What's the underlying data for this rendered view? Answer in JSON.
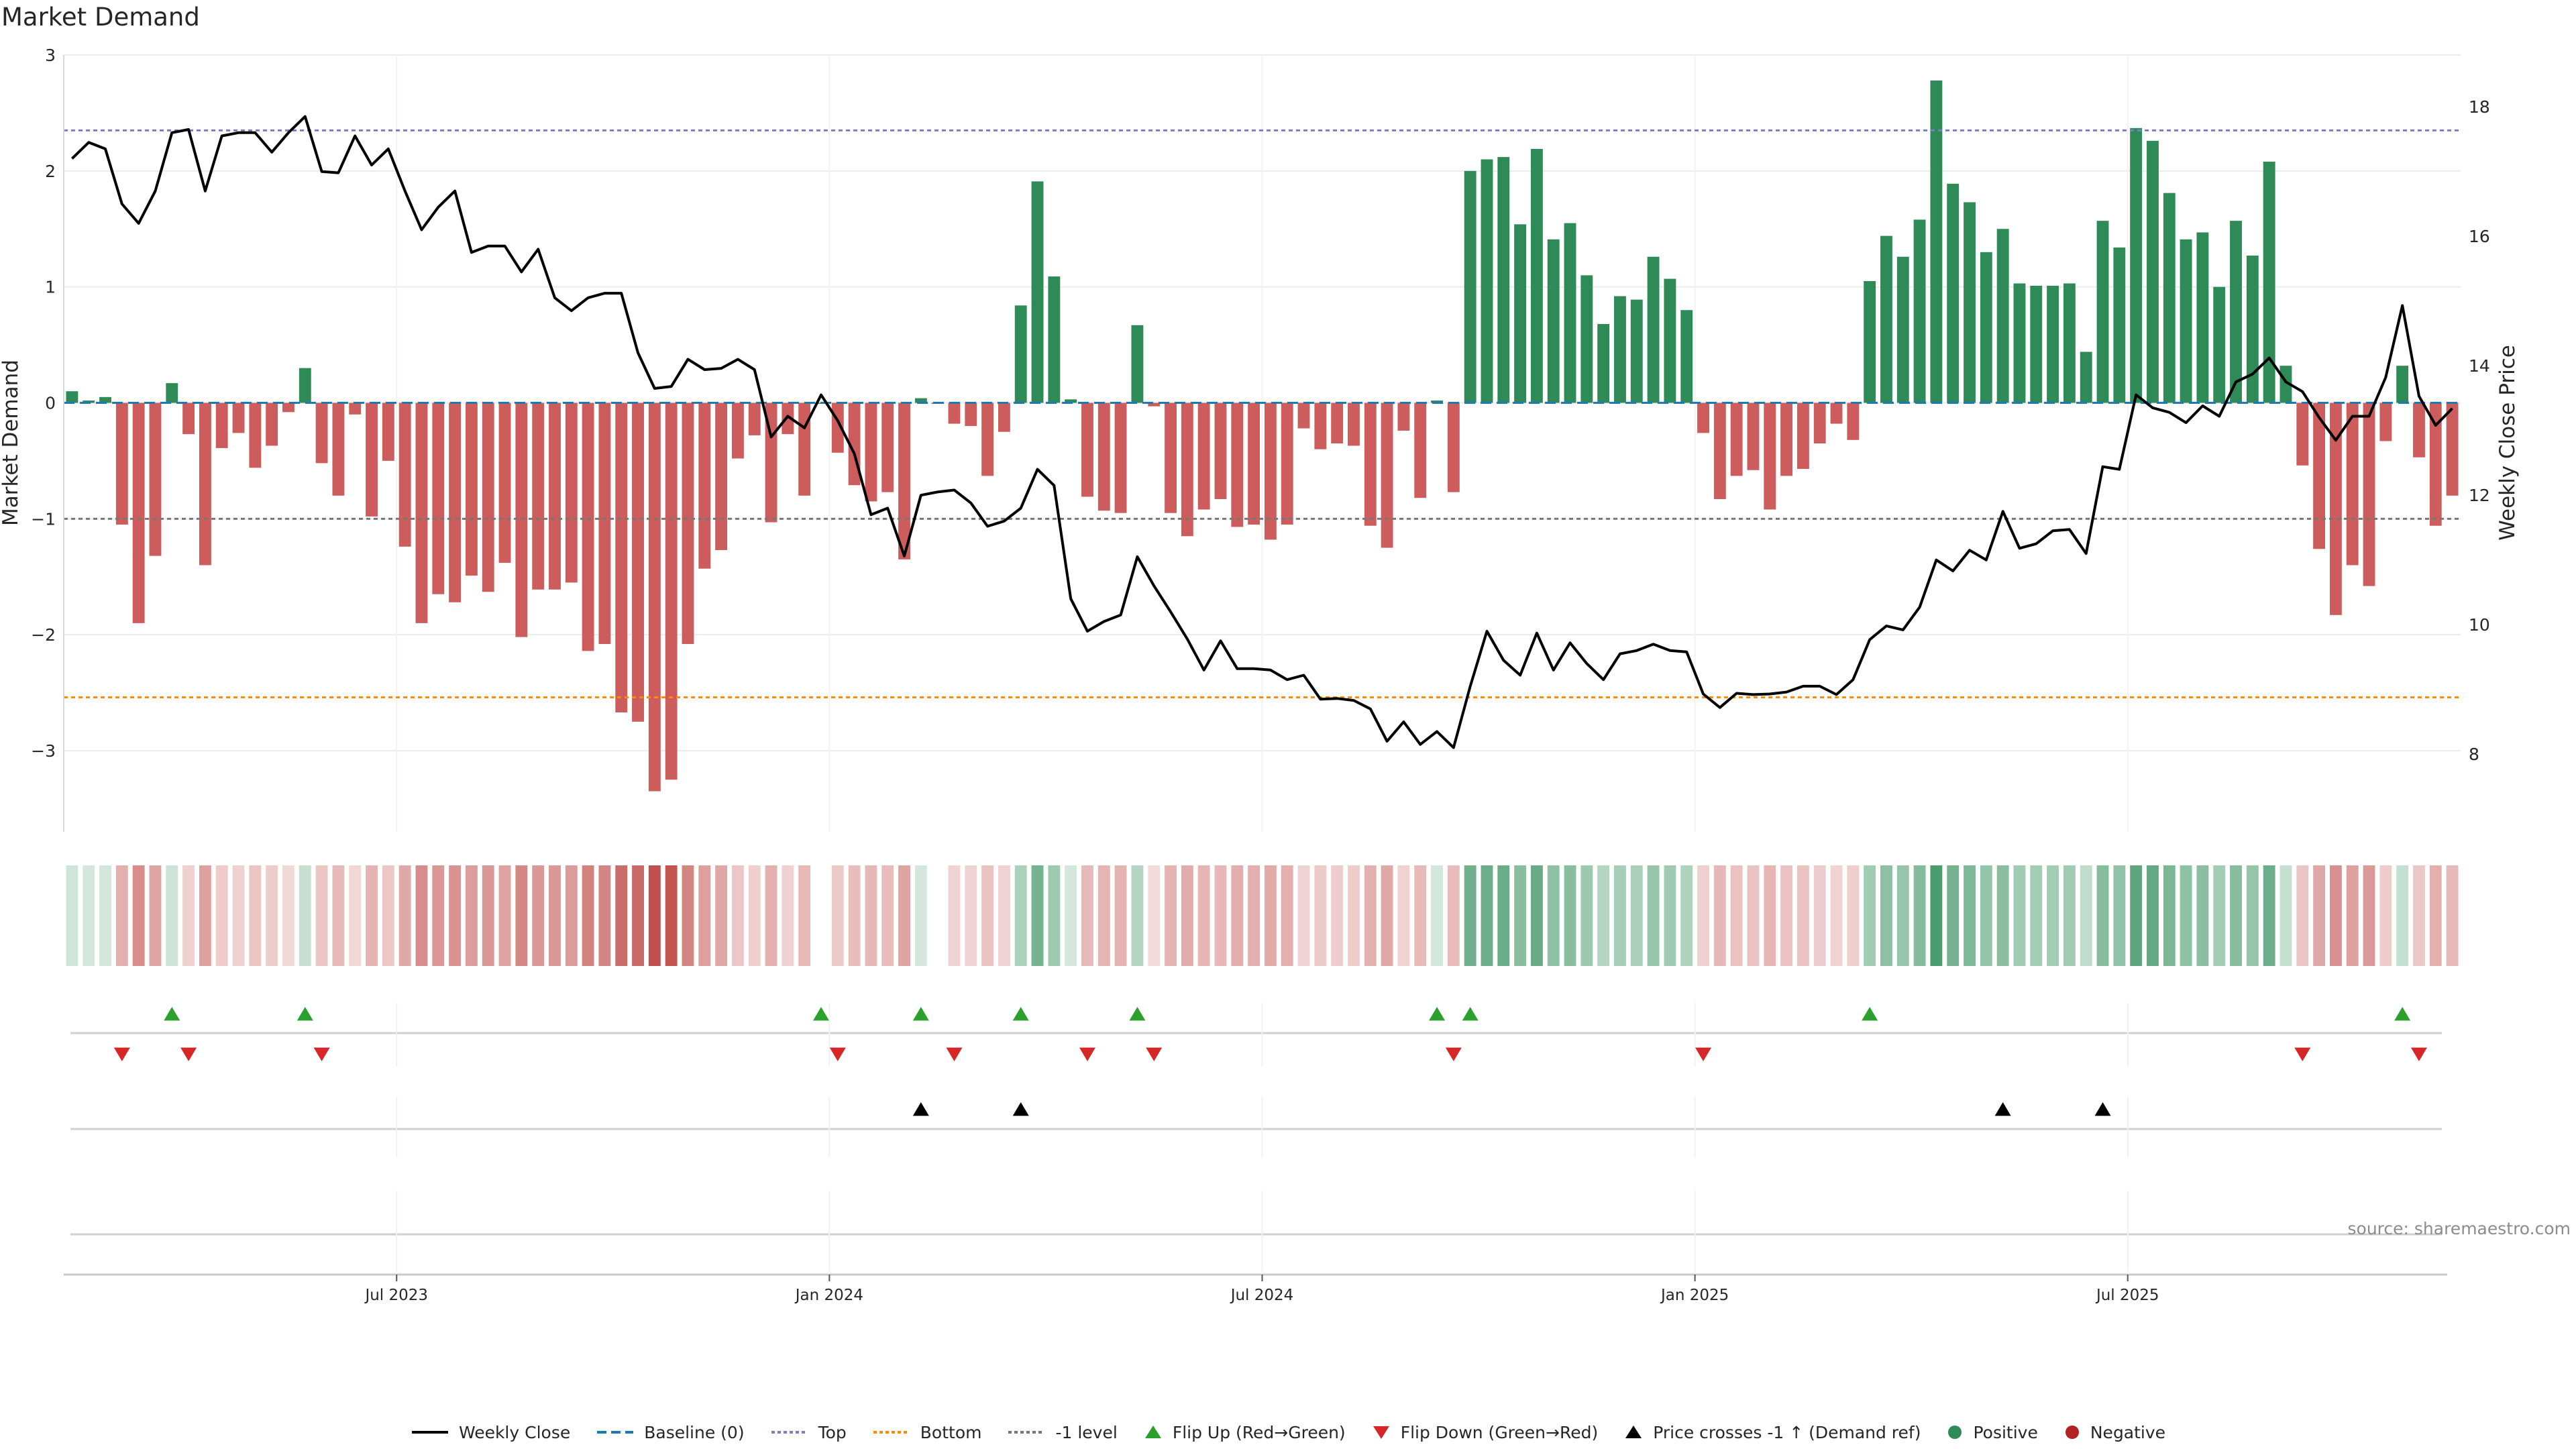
{
  "title": "Market Demand",
  "source": "source: sharemaestro.com",
  "colors": {
    "positive": "#2e8b57",
    "negative": "#cd5c5c",
    "close": "#000000",
    "top": "#7b7fbf",
    "bottom": "#ff8c00",
    "minus1": "#777777",
    "flip_up": "#2ca02c",
    "flip_down": "#d62728",
    "price_cross": "#000000"
  },
  "legend": [
    {
      "label": "Weekly Close",
      "icon": "solid-line",
      "color": "#000000"
    },
    {
      "label": "Baseline (0)",
      "icon": "dashed-line",
      "color": "#1f77b4"
    },
    {
      "label": "Top",
      "icon": "dotted-line",
      "color": "#7b7fbf"
    },
    {
      "label": "Bottom",
      "icon": "dotted-line",
      "color": "#ff8c00"
    },
    {
      "label": "-1 level",
      "icon": "dotted-line",
      "color": "#777777"
    },
    {
      "label": "Flip Up (Red→Green)",
      "icon": "triangle-up",
      "color": "#2ca02c"
    },
    {
      "label": "Flip Down (Green→Red)",
      "icon": "triangle-down",
      "color": "#d62728"
    },
    {
      "label": "Price crosses -1 ↑ (Demand ref)",
      "icon": "triangle-up",
      "color": "#000000"
    },
    {
      "label": "Positive",
      "icon": "circle",
      "color": "#2e8b57"
    },
    {
      "label": "Negative",
      "icon": "circle",
      "color": "#b22222"
    }
  ],
  "chart_data": {
    "type": "bar",
    "ylabel": "Market Demand",
    "y2label": "Weekly Close Price",
    "ylim": [
      -3.7,
      3.0
    ],
    "y2lim": [
      6.8,
      18.8
    ],
    "yticks": [
      "3",
      "2",
      "1",
      "0",
      "−1",
      "−2",
      "−3"
    ],
    "yticks_values": [
      3,
      2,
      1,
      0,
      -1,
      -2,
      -3
    ],
    "y2ticks": [
      "18",
      "16",
      "14",
      "12",
      "10",
      "8"
    ],
    "y2ticks_values": [
      18,
      16,
      14,
      12,
      10,
      8
    ],
    "xticks": [
      "Jul 2023",
      "Jan 2024",
      "Jul 2024",
      "Jan 2025",
      "Jul 2025"
    ],
    "xticks_week_index": [
      20,
      46,
      72,
      98,
      124
    ],
    "top_level": 2.35,
    "bottom_level": -2.54,
    "minus1_level": -1.0,
    "grid": true,
    "legend_position": "bottom",
    "demand": [
      0.1,
      0.02,
      0.05,
      -1.05,
      -1.9,
      -1.32,
      0.17,
      -0.27,
      -1.4,
      -0.39,
      -0.26,
      -0.56,
      -0.37,
      -0.08,
      0.3,
      -0.52,
      -0.8,
      -0.1,
      -0.98,
      -0.5,
      -1.24,
      -1.9,
      -1.65,
      -1.72,
      -1.49,
      -1.63,
      -1.38,
      -2.02,
      -1.61,
      -1.61,
      -1.55,
      -2.14,
      -2.08,
      -2.67,
      -2.75,
      -3.35,
      -3.25,
      -2.08,
      -1.43,
      -1.27,
      -0.48,
      -0.28,
      -1.03,
      -0.27,
      -0.8,
      0.0,
      -0.43,
      -0.71,
      -0.85,
      -0.77,
      -1.35,
      0.04,
      0.0,
      -0.18,
      -0.2,
      -0.63,
      -0.25,
      0.84,
      1.91,
      1.09,
      0.03,
      -0.81,
      -0.93,
      -0.95,
      0.67,
      -0.03,
      -0.95,
      -1.15,
      -0.92,
      -0.83,
      -1.07,
      -1.05,
      -1.18,
      -1.05,
      -0.22,
      -0.4,
      -0.35,
      -0.37,
      -1.06,
      -1.25,
      -0.24,
      -0.82,
      0.02,
      -0.77,
      2.0,
      2.1,
      2.12,
      1.54,
      2.19,
      1.41,
      1.55,
      1.1,
      0.68,
      0.92,
      0.89,
      1.26,
      1.07,
      0.8,
      -0.26,
      -0.83,
      -0.63,
      -0.58,
      -0.92,
      -0.63,
      -0.57,
      -0.35,
      -0.18,
      -0.32,
      1.05,
      1.44,
      1.26,
      1.58,
      2.78,
      1.89,
      1.73,
      1.3,
      1.5,
      1.03,
      1.01,
      1.01,
      1.03,
      0.44,
      1.57,
      1.34,
      2.37,
      2.26,
      1.81,
      1.41,
      1.47,
      1.0,
      1.57,
      1.27,
      2.08,
      0.32,
      -0.54,
      -1.26,
      -1.83,
      -1.4,
      -1.58,
      -0.33,
      0.32,
      -0.47,
      -1.06,
      -0.8
    ],
    "close": [
      17.2,
      17.45,
      17.35,
      16.5,
      16.2,
      16.7,
      17.6,
      17.65,
      16.7,
      17.55,
      17.6,
      17.6,
      17.3,
      17.6,
      17.85,
      17.0,
      16.98,
      17.55,
      17.1,
      17.35,
      16.7,
      16.1,
      16.45,
      16.7,
      15.75,
      15.85,
      15.85,
      15.45,
      15.8,
      15.05,
      14.85,
      15.05,
      15.12,
      15.12,
      14.2,
      13.65,
      13.68,
      14.1,
      13.94,
      13.96,
      14.1,
      13.94,
      12.9,
      13.22,
      13.04,
      13.55,
      13.15,
      12.64,
      11.7,
      11.8,
      11.06,
      12.0,
      12.05,
      12.08,
      11.88,
      11.52,
      11.6,
      11.8,
      12.4,
      12.15,
      10.4,
      9.9,
      10.05,
      10.15,
      11.05,
      10.6,
      10.2,
      9.78,
      9.3,
      9.75,
      9.32,
      9.32,
      9.3,
      9.15,
      9.22,
      8.85,
      8.86,
      8.83,
      8.7,
      8.2,
      8.5,
      8.15,
      8.35,
      8.1,
      9.05,
      9.9,
      9.45,
      9.22,
      9.87,
      9.3,
      9.72,
      9.4,
      9.15,
      9.55,
      9.6,
      9.7,
      9.6,
      9.58,
      8.93,
      8.72,
      8.94,
      8.92,
      8.93,
      8.96,
      9.05,
      9.05,
      8.92,
      9.15,
      9.77,
      9.98,
      9.92,
      10.27,
      11.0,
      10.83,
      11.15,
      11.0,
      11.75,
      11.18,
      11.25,
      11.45,
      11.47,
      11.1,
      12.44,
      12.4,
      13.55,
      13.35,
      13.28,
      13.12,
      13.38,
      13.22,
      13.75,
      13.87,
      14.12,
      13.75,
      13.6,
      13.2,
      12.85,
      13.22,
      13.22,
      13.82,
      14.93,
      13.53,
      13.08,
      13.34
    ],
    "flip_up_index": [
      6,
      14,
      45,
      51,
      57,
      64,
      82,
      84,
      108,
      140
    ],
    "flip_down_index": [
      3,
      7,
      15,
      46,
      53,
      61,
      65,
      83,
      98,
      134,
      141
    ],
    "price_cross_index": [
      51,
      57,
      116,
      122
    ],
    "x_start": "2023-02-13",
    "x_end": "2025-10-27"
  }
}
